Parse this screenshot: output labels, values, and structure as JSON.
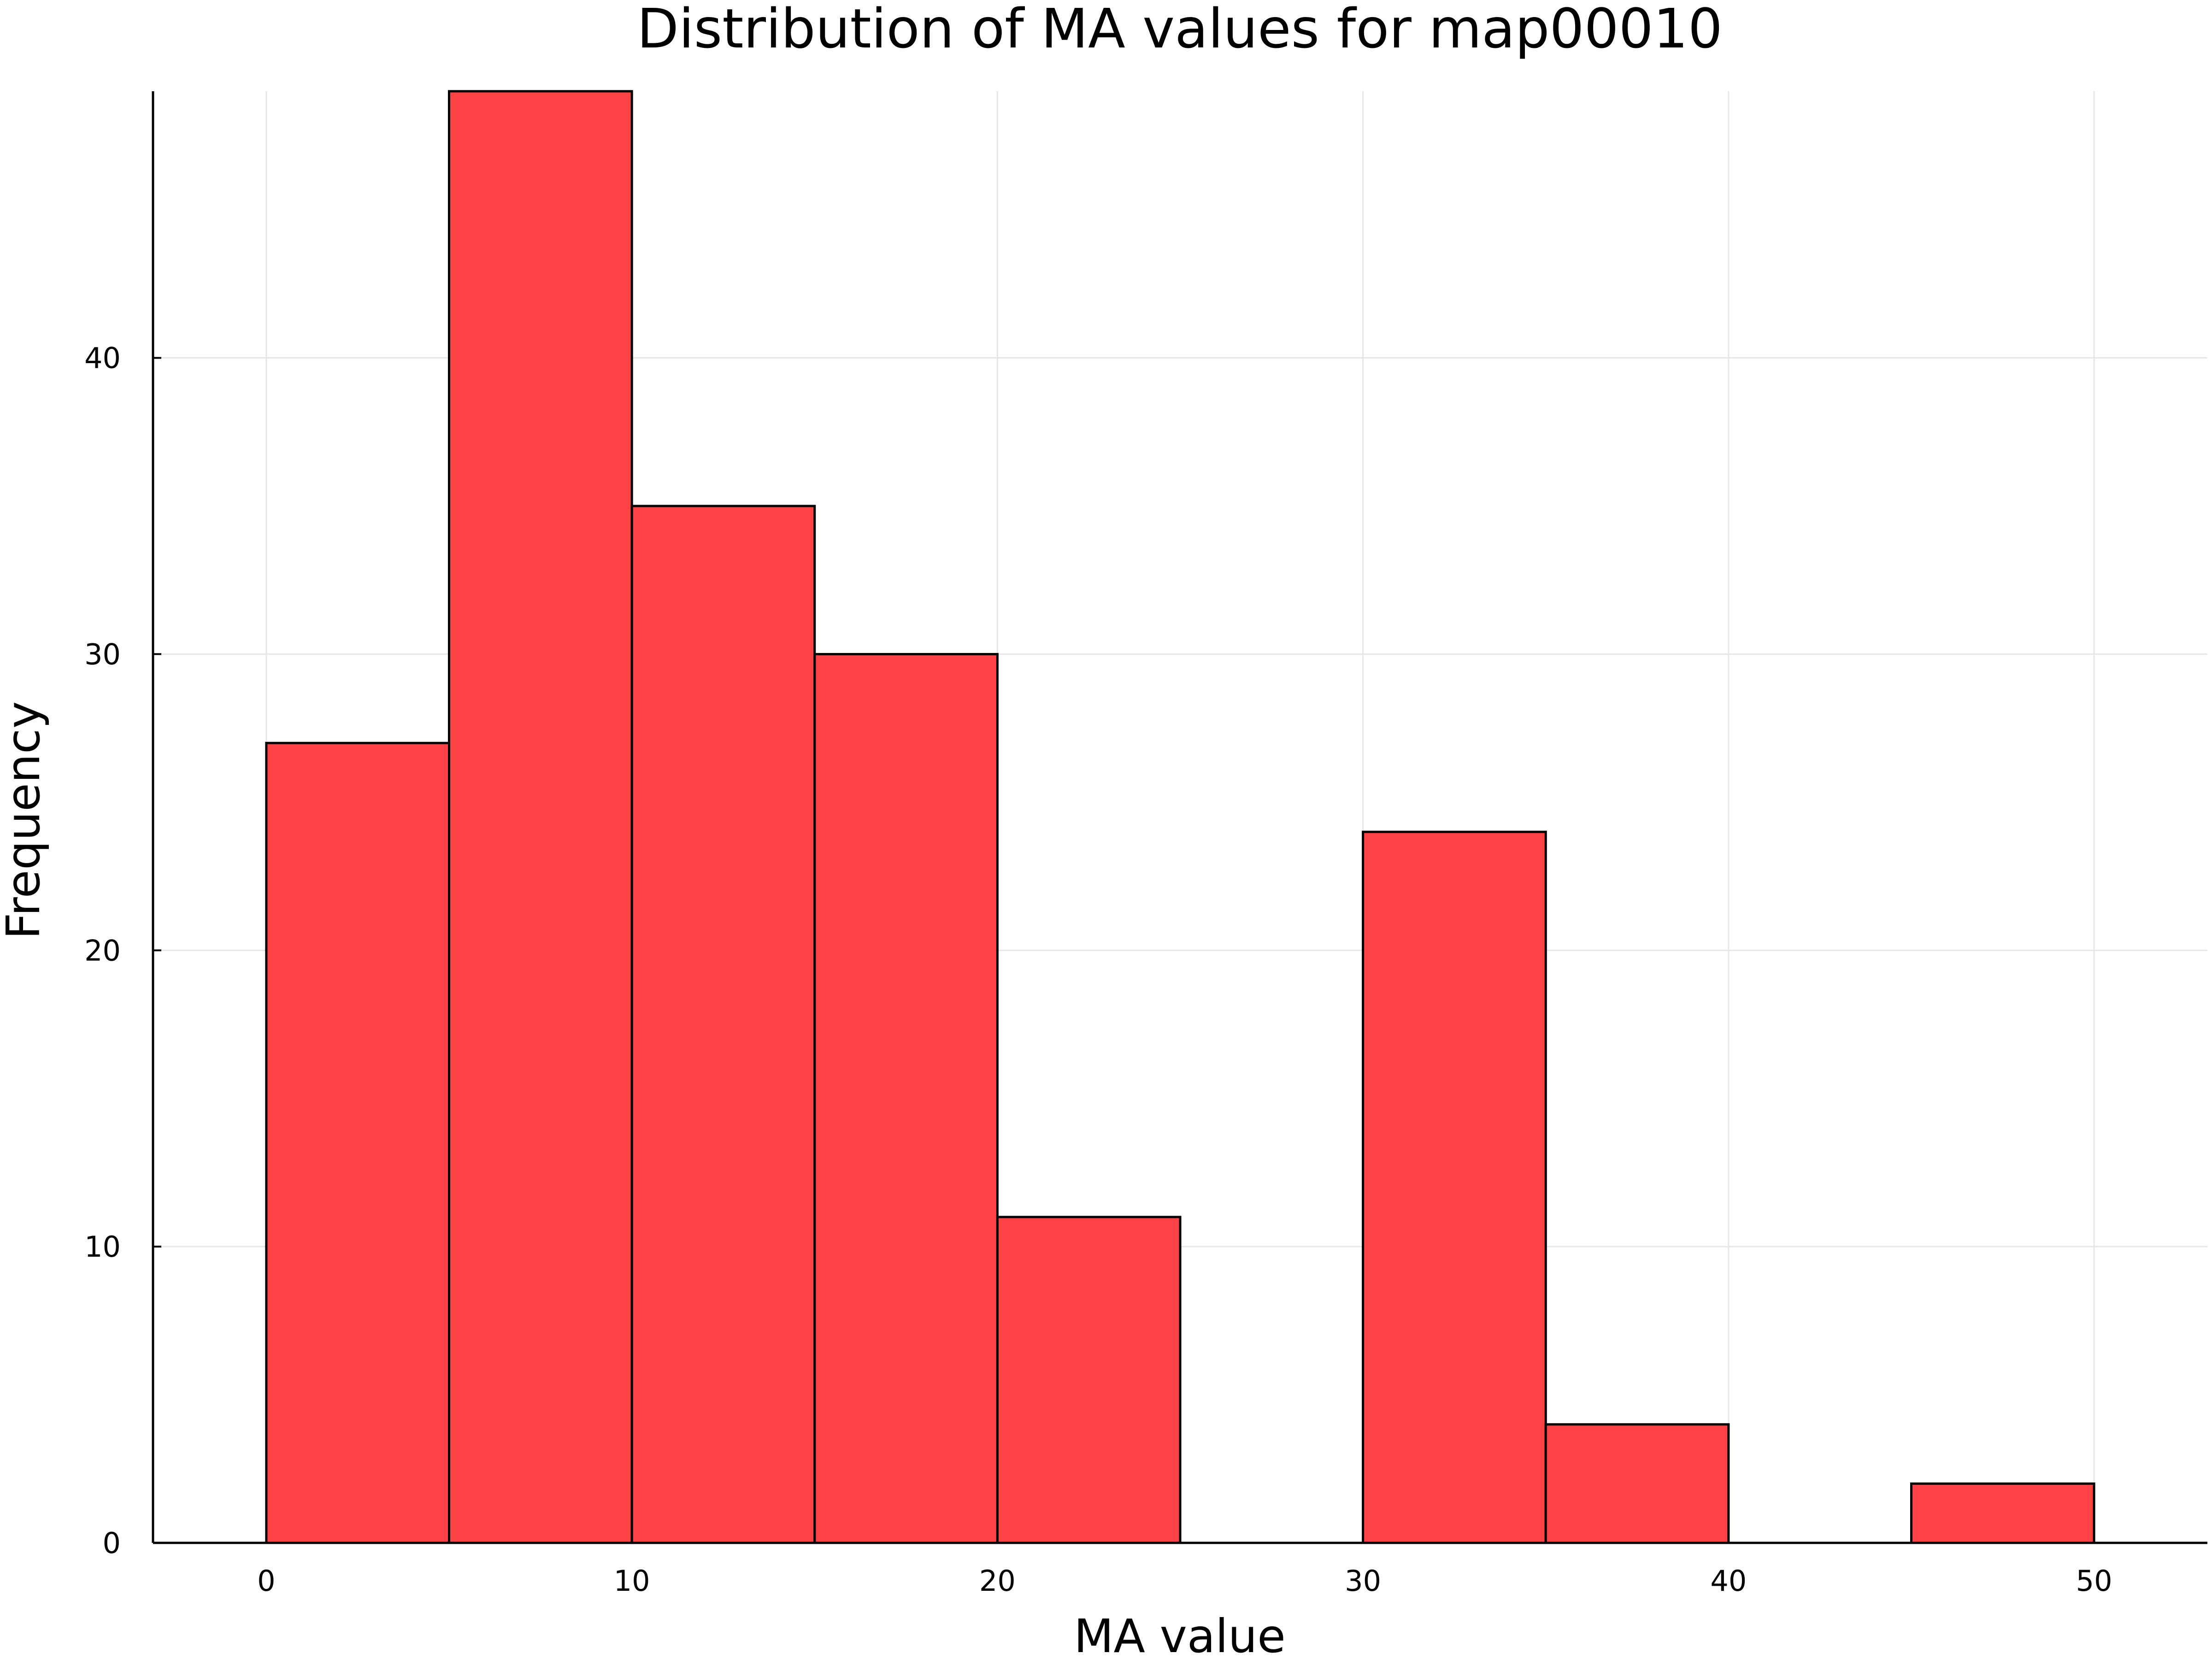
{
  "chart_data": {
    "type": "bar",
    "title": "Distribution of MA values for map00010",
    "xlabel": "MA value",
    "ylabel": "Frequency",
    "bin_edges": [
      0,
      5,
      10,
      15,
      20,
      25,
      30,
      35,
      40,
      45,
      50
    ],
    "values": [
      27,
      49,
      35,
      30,
      11,
      0,
      24,
      4,
      0,
      2
    ],
    "xlim": [
      -3.1,
      53.1
    ],
    "ylim": [
      0,
      49
    ],
    "xticks": [
      0,
      10,
      20,
      30,
      40,
      50
    ],
    "yticks": [
      0,
      10,
      20,
      30,
      40
    ],
    "grid": true,
    "legend": "none",
    "bar_color": "#ff4245",
    "edge_color": "#000000"
  }
}
